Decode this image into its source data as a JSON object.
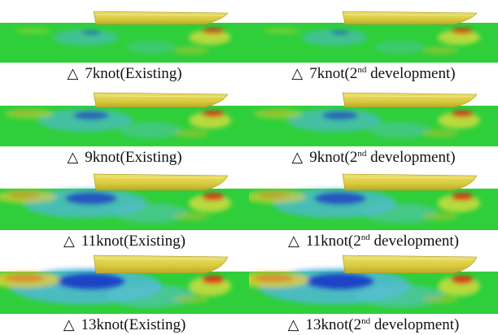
{
  "triangle_glyph": "△",
  "colors": {
    "water": "#2ecf3a",
    "hull": "#d9c93c",
    "high": "#e02010",
    "low": "#1018c8"
  },
  "panels": [
    {
      "speed": "7knot",
      "label_a": "7knot(Existing)",
      "variant": "existing",
      "row": 0
    },
    {
      "speed": "7knot",
      "label_pre": "7knot(2",
      "label_sup": "nd",
      "label_post": " development)",
      "variant": "2nd",
      "row": 0
    },
    {
      "speed": "9knot",
      "label_a": "9knot(Existing)",
      "variant": "existing",
      "row": 1
    },
    {
      "speed": "9knot",
      "label_pre": "9knot(2",
      "label_sup": "nd",
      "label_post": " development)",
      "variant": "2nd",
      "row": 1
    },
    {
      "speed": "11knot",
      "label_a": "11knot(Existing)",
      "variant": "existing",
      "row": 2
    },
    {
      "speed": "11knot",
      "label_pre": "11knot(2",
      "label_sup": "nd",
      "label_post": " development)",
      "variant": "2nd",
      "row": 2
    },
    {
      "speed": "13knot",
      "label_a": "13knot(Existing)",
      "variant": "existing",
      "row": 3
    },
    {
      "speed": "13knot",
      "label_pre": "13knot(2",
      "label_sup": "nd",
      "label_post": " development)",
      "variant": "2nd",
      "row": 3
    }
  ]
}
